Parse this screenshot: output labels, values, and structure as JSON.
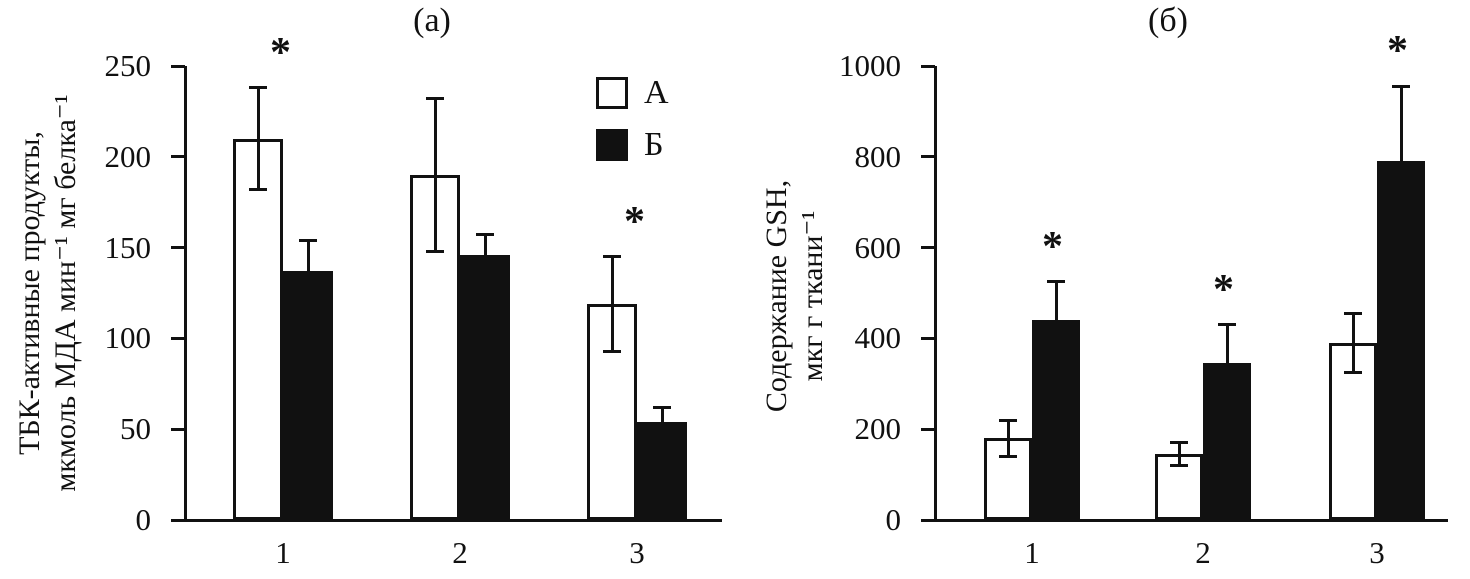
{
  "ink_color": "#111111",
  "background_color": "#ffffff",
  "chart_data": [
    {
      "type": "bar",
      "title": "(а)",
      "ylabel": "ТБК-активные продукты, мкмоль МДА мин⁻¹ мг белка⁻¹",
      "ylabel_lines": [
        "ТБК-активные продукты,",
        "мкмоль МДА мин⁻¹ мг белка⁻¹"
      ],
      "xlabel": "",
      "categories": [
        "1",
        "2",
        "3"
      ],
      "series": [
        {
          "name": "А",
          "fill": "#ffffff",
          "values": [
            210,
            190,
            119
          ],
          "errors": [
            28,
            42,
            26
          ]
        },
        {
          "name": "Б",
          "fill": "#111111",
          "values": [
            137,
            146,
            54
          ],
          "errors": [
            17,
            11,
            8
          ]
        }
      ],
      "ylim": [
        0,
        250
      ],
      "yticks": [
        0,
        50,
        100,
        150,
        200,
        250
      ],
      "grid": false,
      "error_bars": true,
      "significance": [
        {
          "category": "1",
          "series": "А",
          "symbol": "*"
        },
        {
          "category": "3",
          "series": "А",
          "symbol": "*"
        }
      ],
      "legend": {
        "visible": true,
        "entries": [
          "А",
          "Б"
        ],
        "position": "upper right"
      }
    },
    {
      "type": "bar",
      "title": "(б)",
      "ylabel": "Содержание GSH, мкг г ткани⁻¹",
      "ylabel_lines": [
        "Содержание GSH,",
        "мкг г ткани⁻¹"
      ],
      "xlabel": "",
      "categories": [
        "1",
        "2",
        "3"
      ],
      "series": [
        {
          "name": "А",
          "fill": "#ffffff",
          "values": [
            180,
            145,
            390
          ],
          "errors": [
            40,
            25,
            65
          ]
        },
        {
          "name": "Б",
          "fill": "#111111",
          "values": [
            440,
            345,
            790
          ],
          "errors": [
            85,
            85,
            165
          ]
        }
      ],
      "ylim": [
        0,
        1000
      ],
      "yticks": [
        0,
        200,
        400,
        600,
        800,
        1000
      ],
      "grid": false,
      "error_bars": true,
      "significance": [
        {
          "category": "1",
          "series": "Б",
          "symbol": "*"
        },
        {
          "category": "2",
          "series": "Б",
          "symbol": "*"
        },
        {
          "category": "3",
          "series": "Б",
          "symbol": "*"
        }
      ],
      "legend": {
        "visible": false,
        "entries": [],
        "position": ""
      }
    }
  ]
}
